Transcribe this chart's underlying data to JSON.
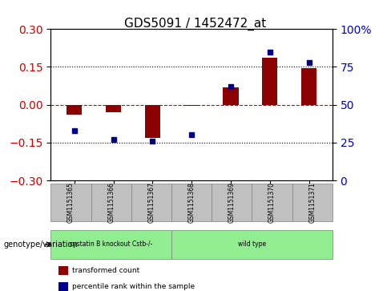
{
  "title": "GDS5091 / 1452472_at",
  "samples": [
    "GSM1151365",
    "GSM1151366",
    "GSM1151367",
    "GSM1151368",
    "GSM1151369",
    "GSM1151370",
    "GSM1151371"
  ],
  "transformed_counts": [
    -0.04,
    -0.03,
    -0.13,
    -0.005,
    0.07,
    0.185,
    0.145
  ],
  "percentile_ranks": [
    33,
    27,
    26,
    30,
    62,
    85,
    78
  ],
  "ylim_left": [
    -0.3,
    0.3
  ],
  "ylim_right": [
    0,
    100
  ],
  "yticks_left": [
    -0.3,
    -0.15,
    0,
    0.15,
    0.3
  ],
  "yticks_right": [
    0,
    25,
    50,
    75,
    100
  ],
  "hlines_dotted": [
    -0.15,
    0.15
  ],
  "hline_dashed": 0.0,
  "groups": [
    {
      "label": "cystatin B knockout Cstb-/-",
      "samples": [
        0,
        1,
        2
      ],
      "color": "#90EE90"
    },
    {
      "label": "wild type",
      "samples": [
        3,
        4,
        5,
        6
      ],
      "color": "#90EE90"
    }
  ],
  "bar_color": "#8B0000",
  "dot_color": "#00008B",
  "background_plot": "#ffffff",
  "background_xtick": "#C0C0C0",
  "legend_items": [
    {
      "label": "transformed count",
      "color": "#8B0000",
      "marker": "s"
    },
    {
      "label": "percentile rank within the sample",
      "color": "#00008B",
      "marker": "s"
    }
  ]
}
